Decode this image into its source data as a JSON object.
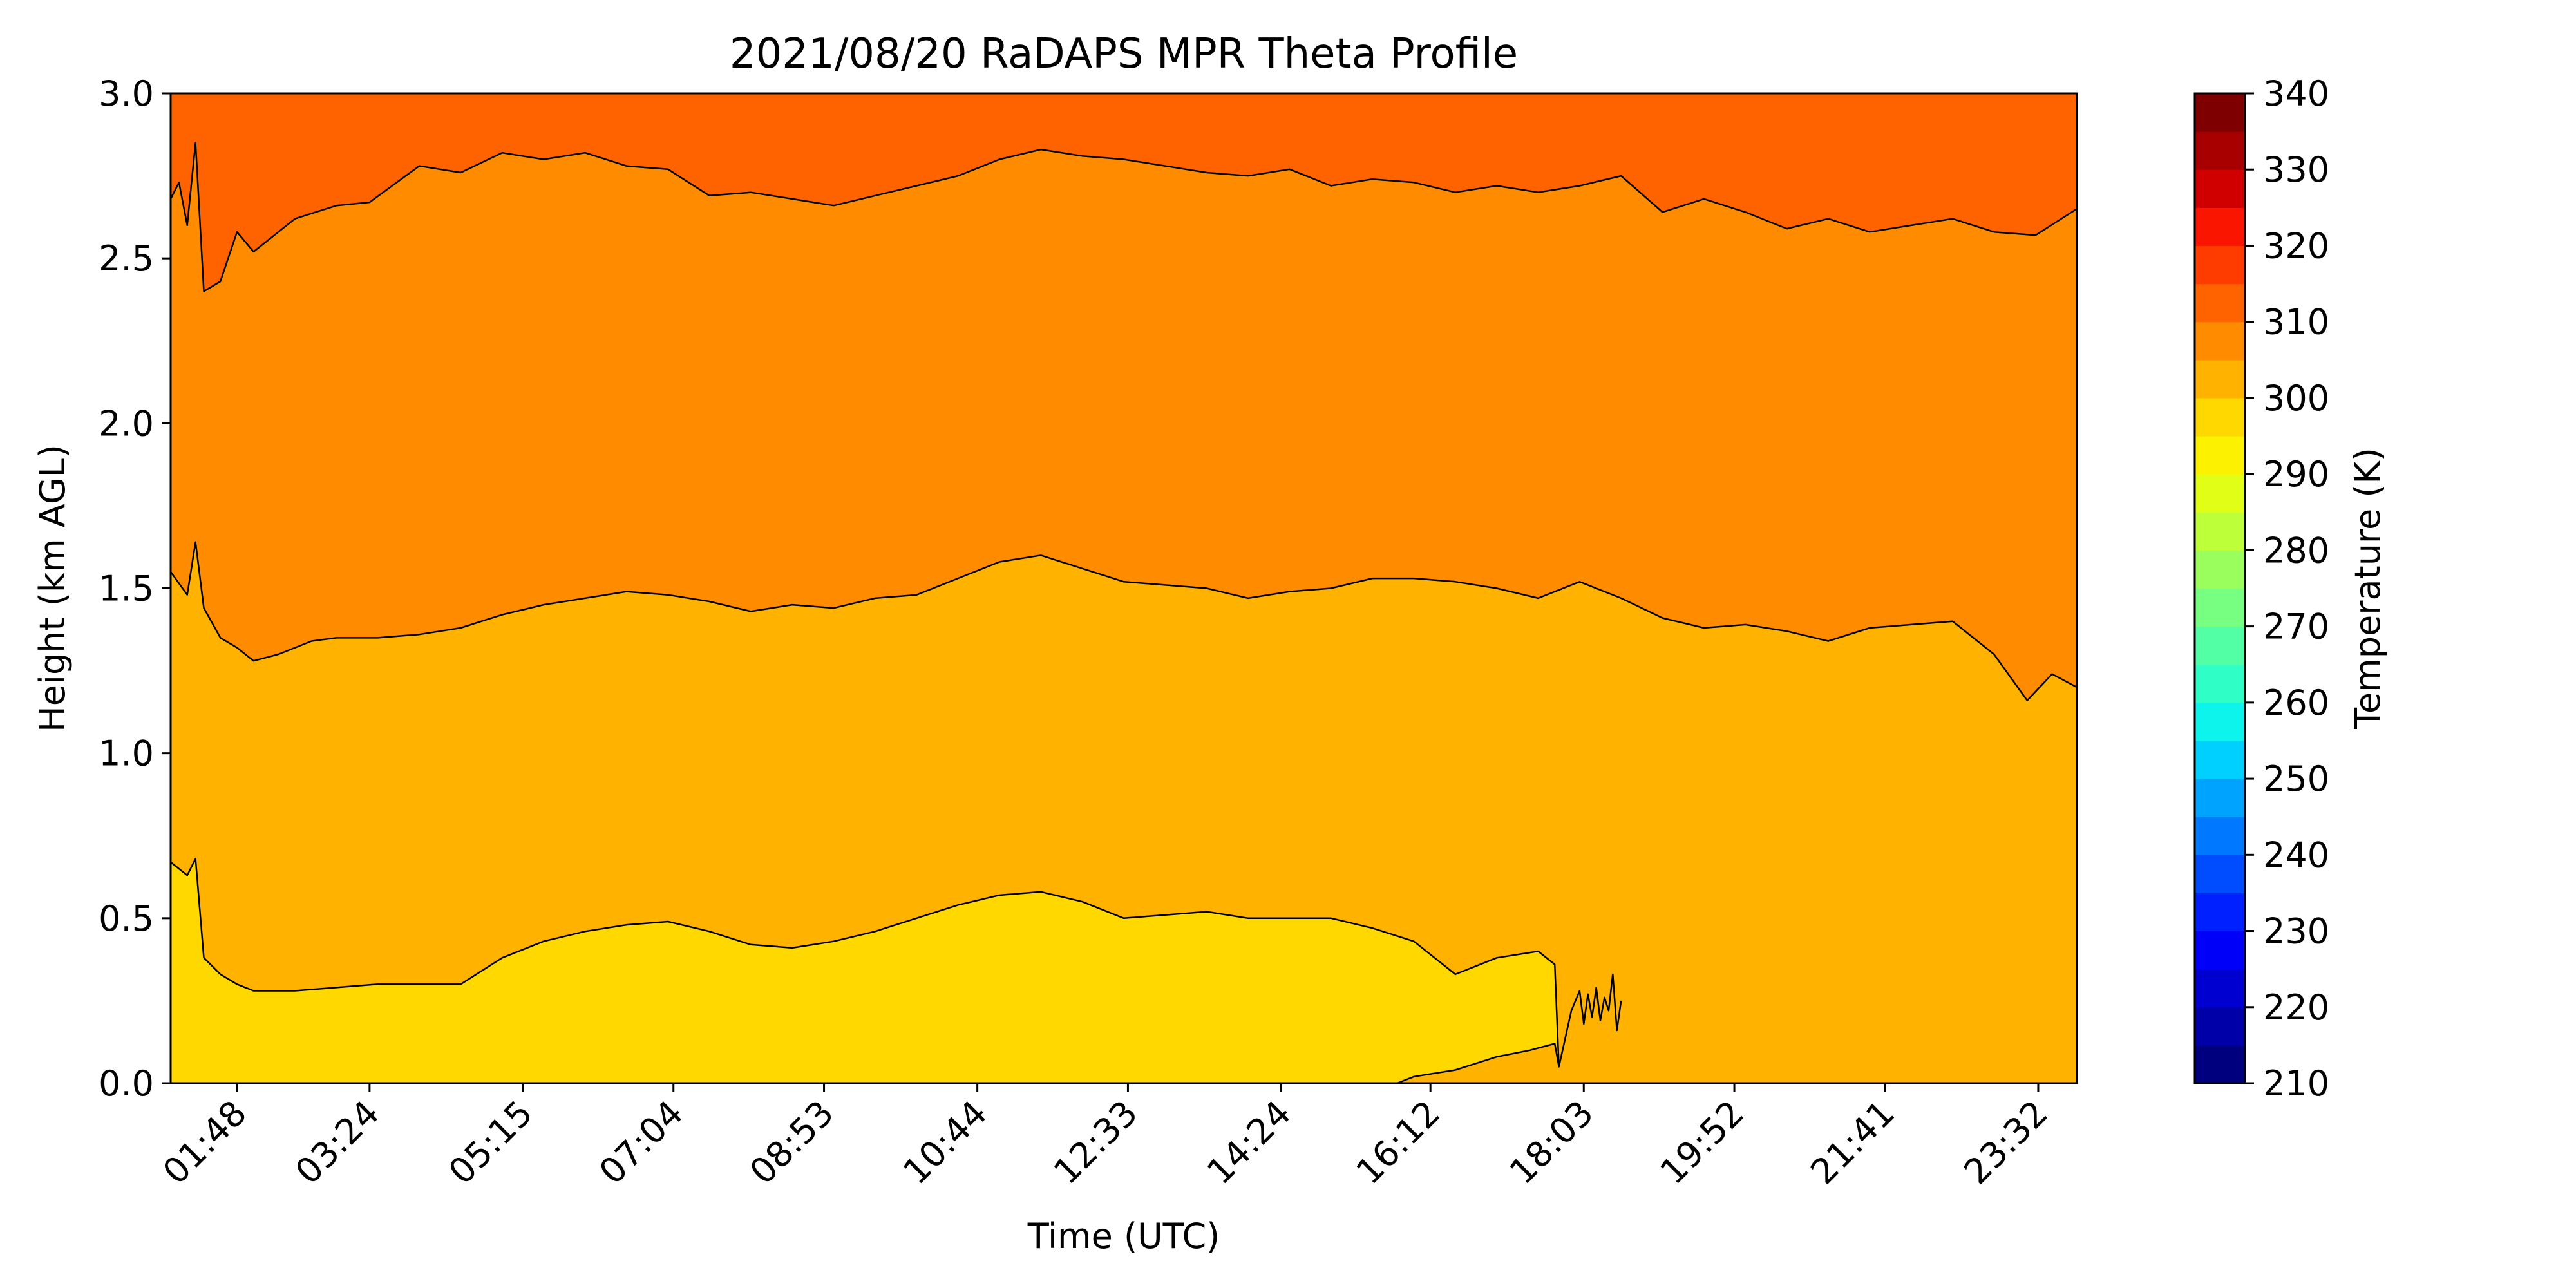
{
  "chart_data": {
    "type": "heatmap",
    "title": "2021/08/20 RaDAPS MPR Theta Profile",
    "xlabel": "Time (UTC)",
    "ylabel": "Height (km AGL)",
    "xlim": [
      1.0,
      24.0
    ],
    "ylim": [
      0.0,
      3.0
    ],
    "x_ticks": [
      {
        "label": "01:48",
        "hours": 1.8
      },
      {
        "label": "03:24",
        "hours": 3.4
      },
      {
        "label": "05:15",
        "hours": 5.25
      },
      {
        "label": "07:04",
        "hours": 7.0667
      },
      {
        "label": "08:53",
        "hours": 8.8833
      },
      {
        "label": "10:44",
        "hours": 10.7333
      },
      {
        "label": "12:33",
        "hours": 12.55
      },
      {
        "label": "14:24",
        "hours": 14.4
      },
      {
        "label": "16:12",
        "hours": 16.2
      },
      {
        "label": "18:03",
        "hours": 18.05
      },
      {
        "label": "19:52",
        "hours": 19.8667
      },
      {
        "label": "21:41",
        "hours": 21.6833
      },
      {
        "label": "23:32",
        "hours": 23.5333
      }
    ],
    "y_ticks": [
      "0.0",
      "0.5",
      "1.0",
      "1.5",
      "2.0",
      "2.5",
      "3.0"
    ],
    "colorbar": {
      "label": "Temperature (K)",
      "range": [
        210,
        340
      ],
      "ticks": [
        "210",
        "220",
        "230",
        "240",
        "250",
        "260",
        "270",
        "280",
        "290",
        "300",
        "310",
        "320",
        "330",
        "340"
      ],
      "levels_step": 5,
      "colors": [
        "#00007f",
        "#0000a8",
        "#0000d1",
        "#0000fa",
        "#0020ff",
        "#004cff",
        "#0078ff",
        "#00a4ff",
        "#00d0ff",
        "#0cf4eb",
        "#2fffc7",
        "#53ffa4",
        "#76ff80",
        "#9aff5d",
        "#bdff39",
        "#e1ff16",
        "#fcf200",
        "#ffd800",
        "#ffb200",
        "#ff8b00",
        "#ff6300",
        "#ff3c00",
        "#fa1500",
        "#d10000",
        "#a80000",
        "#7f0000"
      ]
    },
    "fill_bands": [
      {
        "range_K": "295-300",
        "color": "#ffd800"
      },
      {
        "range_K": "300-305",
        "color": "#ffb200"
      },
      {
        "range_K": "305-310",
        "color": "#ff8b00"
      },
      {
        "range_K": "310-315",
        "color": "#ff6300"
      }
    ],
    "contours": [
      {
        "name": "310 K isentrope",
        "points": [
          [
            1.0,
            2.68
          ],
          [
            1.1,
            2.73
          ],
          [
            1.2,
            2.6
          ],
          [
            1.3,
            2.85
          ],
          [
            1.4,
            2.4
          ],
          [
            1.6,
            2.43
          ],
          [
            1.8,
            2.58
          ],
          [
            2.0,
            2.52
          ],
          [
            2.5,
            2.62
          ],
          [
            3.0,
            2.66
          ],
          [
            3.4,
            2.67
          ],
          [
            4.0,
            2.78
          ],
          [
            4.5,
            2.76
          ],
          [
            5.0,
            2.82
          ],
          [
            5.5,
            2.8
          ],
          [
            6.0,
            2.82
          ],
          [
            6.5,
            2.78
          ],
          [
            7.0,
            2.77
          ],
          [
            7.5,
            2.69
          ],
          [
            8.0,
            2.7
          ],
          [
            8.5,
            2.68
          ],
          [
            9.0,
            2.66
          ],
          [
            9.5,
            2.69
          ],
          [
            10.0,
            2.72
          ],
          [
            10.5,
            2.75
          ],
          [
            11.0,
            2.8
          ],
          [
            11.5,
            2.83
          ],
          [
            12.0,
            2.81
          ],
          [
            12.5,
            2.8
          ],
          [
            13.0,
            2.78
          ],
          [
            13.5,
            2.76
          ],
          [
            14.0,
            2.75
          ],
          [
            14.5,
            2.77
          ],
          [
            15.0,
            2.72
          ],
          [
            15.5,
            2.74
          ],
          [
            16.0,
            2.73
          ],
          [
            16.5,
            2.7
          ],
          [
            17.0,
            2.72
          ],
          [
            17.5,
            2.7
          ],
          [
            18.0,
            2.72
          ],
          [
            18.5,
            2.75
          ],
          [
            19.0,
            2.64
          ],
          [
            19.5,
            2.68
          ],
          [
            20.0,
            2.64
          ],
          [
            20.5,
            2.59
          ],
          [
            21.0,
            2.62
          ],
          [
            21.5,
            2.58
          ],
          [
            22.0,
            2.6
          ],
          [
            22.5,
            2.62
          ],
          [
            23.0,
            2.58
          ],
          [
            23.5,
            2.57
          ],
          [
            24.0,
            2.65
          ]
        ]
      },
      {
        "name": "305 K isentrope",
        "points": [
          [
            1.0,
            1.55
          ],
          [
            1.2,
            1.48
          ],
          [
            1.3,
            1.64
          ],
          [
            1.4,
            1.44
          ],
          [
            1.6,
            1.35
          ],
          [
            1.8,
            1.32
          ],
          [
            2.0,
            1.28
          ],
          [
            2.3,
            1.3
          ],
          [
            2.7,
            1.34
          ],
          [
            3.0,
            1.35
          ],
          [
            3.5,
            1.35
          ],
          [
            4.0,
            1.36
          ],
          [
            4.5,
            1.38
          ],
          [
            5.0,
            1.42
          ],
          [
            5.5,
            1.45
          ],
          [
            6.0,
            1.47
          ],
          [
            6.5,
            1.49
          ],
          [
            7.0,
            1.48
          ],
          [
            7.5,
            1.46
          ],
          [
            8.0,
            1.43
          ],
          [
            8.5,
            1.45
          ],
          [
            9.0,
            1.44
          ],
          [
            9.5,
            1.47
          ],
          [
            10.0,
            1.48
          ],
          [
            10.5,
            1.53
          ],
          [
            11.0,
            1.58
          ],
          [
            11.5,
            1.6
          ],
          [
            12.0,
            1.56
          ],
          [
            12.5,
            1.52
          ],
          [
            13.0,
            1.51
          ],
          [
            13.5,
            1.5
          ],
          [
            14.0,
            1.47
          ],
          [
            14.5,
            1.49
          ],
          [
            15.0,
            1.5
          ],
          [
            15.5,
            1.53
          ],
          [
            16.0,
            1.53
          ],
          [
            16.5,
            1.52
          ],
          [
            17.0,
            1.5
          ],
          [
            17.5,
            1.47
          ],
          [
            18.0,
            1.52
          ],
          [
            18.5,
            1.47
          ],
          [
            19.0,
            1.41
          ],
          [
            19.5,
            1.38
          ],
          [
            20.0,
            1.39
          ],
          [
            20.5,
            1.37
          ],
          [
            21.0,
            1.34
          ],
          [
            21.5,
            1.38
          ],
          [
            22.0,
            1.39
          ],
          [
            22.5,
            1.4
          ],
          [
            23.0,
            1.3
          ],
          [
            23.4,
            1.16
          ],
          [
            23.7,
            1.24
          ],
          [
            24.0,
            1.2
          ]
        ]
      },
      {
        "name": "300 K isentrope (upper)",
        "points": [
          [
            1.0,
            0.67
          ],
          [
            1.2,
            0.63
          ],
          [
            1.3,
            0.68
          ],
          [
            1.4,
            0.38
          ],
          [
            1.6,
            0.33
          ],
          [
            1.8,
            0.3
          ],
          [
            2.0,
            0.28
          ],
          [
            2.5,
            0.28
          ],
          [
            3.0,
            0.29
          ],
          [
            3.5,
            0.3
          ],
          [
            4.0,
            0.3
          ],
          [
            4.5,
            0.3
          ],
          [
            5.0,
            0.38
          ],
          [
            5.5,
            0.43
          ],
          [
            6.0,
            0.46
          ],
          [
            6.5,
            0.48
          ],
          [
            7.0,
            0.49
          ],
          [
            7.5,
            0.46
          ],
          [
            8.0,
            0.42
          ],
          [
            8.5,
            0.41
          ],
          [
            9.0,
            0.43
          ],
          [
            9.5,
            0.46
          ],
          [
            10.0,
            0.5
          ],
          [
            10.5,
            0.54
          ],
          [
            11.0,
            0.57
          ],
          [
            11.5,
            0.58
          ],
          [
            12.0,
            0.55
          ],
          [
            12.5,
            0.5
          ],
          [
            13.0,
            0.51
          ],
          [
            13.5,
            0.52
          ],
          [
            14.0,
            0.5
          ],
          [
            14.5,
            0.5
          ],
          [
            15.0,
            0.5
          ],
          [
            15.5,
            0.47
          ],
          [
            16.0,
            0.43
          ],
          [
            16.5,
            0.33
          ],
          [
            17.0,
            0.38
          ],
          [
            17.5,
            0.4
          ],
          [
            17.7,
            0.36
          ],
          [
            17.75,
            0.05
          ],
          [
            17.9,
            0.22
          ]
        ]
      },
      {
        "name": "300 K isentrope (lower)",
        "points": [
          [
            15.8,
            0.0
          ],
          [
            16.0,
            0.02
          ],
          [
            16.5,
            0.04
          ],
          [
            17.0,
            0.08
          ],
          [
            17.4,
            0.1
          ],
          [
            17.7,
            0.12
          ],
          [
            17.75,
            0.05
          ]
        ]
      },
      {
        "name": "300 K oscillation",
        "points": [
          [
            17.9,
            0.22
          ],
          [
            18.0,
            0.28
          ],
          [
            18.05,
            0.18
          ],
          [
            18.1,
            0.27
          ],
          [
            18.15,
            0.2
          ],
          [
            18.2,
            0.29
          ],
          [
            18.25,
            0.19
          ],
          [
            18.3,
            0.26
          ],
          [
            18.35,
            0.22
          ],
          [
            18.4,
            0.33
          ],
          [
            18.45,
            0.16
          ],
          [
            18.5,
            0.25
          ]
        ]
      }
    ]
  }
}
